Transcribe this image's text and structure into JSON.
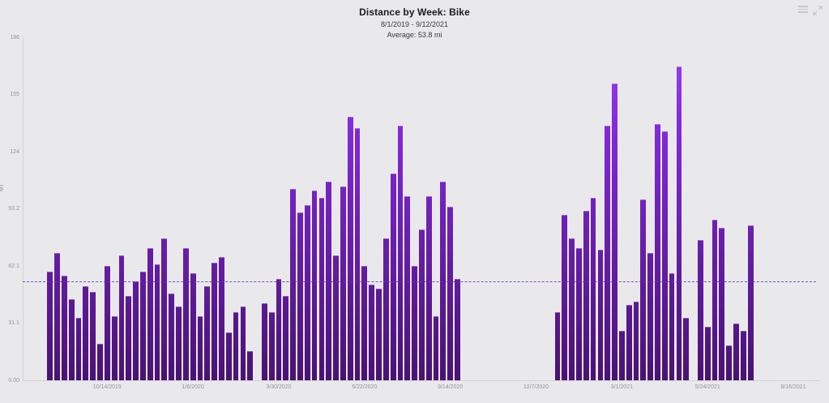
{
  "header": {
    "title": "Distance by Week: Bike",
    "subtitle": "8/1/2019 - 9/12/2021",
    "average_label": "Average: 53.8 mi"
  },
  "toolbar": {
    "menu_icon": "hamburger-menu",
    "expand_icon": "expand-fullscreen"
  },
  "colors": {
    "background": "#e9e9ec",
    "bar_gradient_top": "#9d42f2",
    "bar_gradient_mid": "#8228d8",
    "bar_gradient_bottom": "#4a1273",
    "average_line": "#6d30be",
    "axis_line": "#d3d3d8",
    "tick_text": "#93939a",
    "title_text": "#1c1c1f",
    "subtitle_text": "#3a3a3f"
  },
  "chart_data": {
    "type": "bar",
    "title": "Distance by Week: Bike",
    "date_range": "8/1/2019 - 9/12/2021",
    "unit": "mi",
    "average_mi": 53.8,
    "ylabel": "MI",
    "ylim": [
      0,
      186
    ],
    "grid": "none",
    "legend": "none",
    "y_ticks": [
      {
        "label": "186",
        "value": 186
      },
      {
        "label": "155",
        "value": 155
      },
      {
        "label": "124",
        "value": 124
      },
      {
        "label": "93.2",
        "value": 93.2
      },
      {
        "label": "62.1",
        "value": 62.1
      },
      {
        "label": "31.1",
        "value": 31.1
      },
      {
        "label": "0.00",
        "value": 0
      }
    ],
    "x_ticks": [
      {
        "label": "10/14/2019",
        "slot": 11
      },
      {
        "label": "1/6/2020",
        "slot": 23
      },
      {
        "label": "3/30/2020",
        "slot": 35
      },
      {
        "label": "6/22/2020",
        "slot": 47
      },
      {
        "label": "9/14/2020",
        "slot": 59
      },
      {
        "label": "12/7/2020",
        "slot": 71
      },
      {
        "label": "3/1/2021",
        "slot": 83
      },
      {
        "label": "5/24/2021",
        "slot": 95
      },
      {
        "label": "8/16/2021",
        "slot": 107
      }
    ],
    "weekly_values": [
      0,
      0,
      0,
      59,
      69,
      57,
      44,
      34,
      51,
      48,
      20,
      62,
      35,
      68,
      46,
      54,
      59,
      72,
      63,
      77,
      47,
      40,
      72,
      58,
      35,
      51,
      64,
      67,
      26,
      37,
      40,
      16,
      0,
      42,
      37,
      55,
      46,
      104,
      91,
      95,
      103,
      99,
      108,
      68,
      105,
      143,
      137,
      62,
      52,
      50,
      77,
      112,
      138,
      100,
      62,
      82,
      100,
      35,
      108,
      94,
      55,
      0,
      0,
      0,
      0,
      0,
      0,
      0,
      0,
      0,
      0,
      0,
      0,
      0,
      37,
      90,
      77,
      72,
      92,
      99,
      71,
      138,
      161,
      27,
      41,
      43,
      98,
      69,
      139,
      135,
      58,
      170,
      34,
      0,
      76,
      29,
      87,
      83,
      19,
      31,
      27,
      84,
      0,
      0,
      0,
      0,
      0,
      0,
      0,
      0,
      0
    ]
  }
}
